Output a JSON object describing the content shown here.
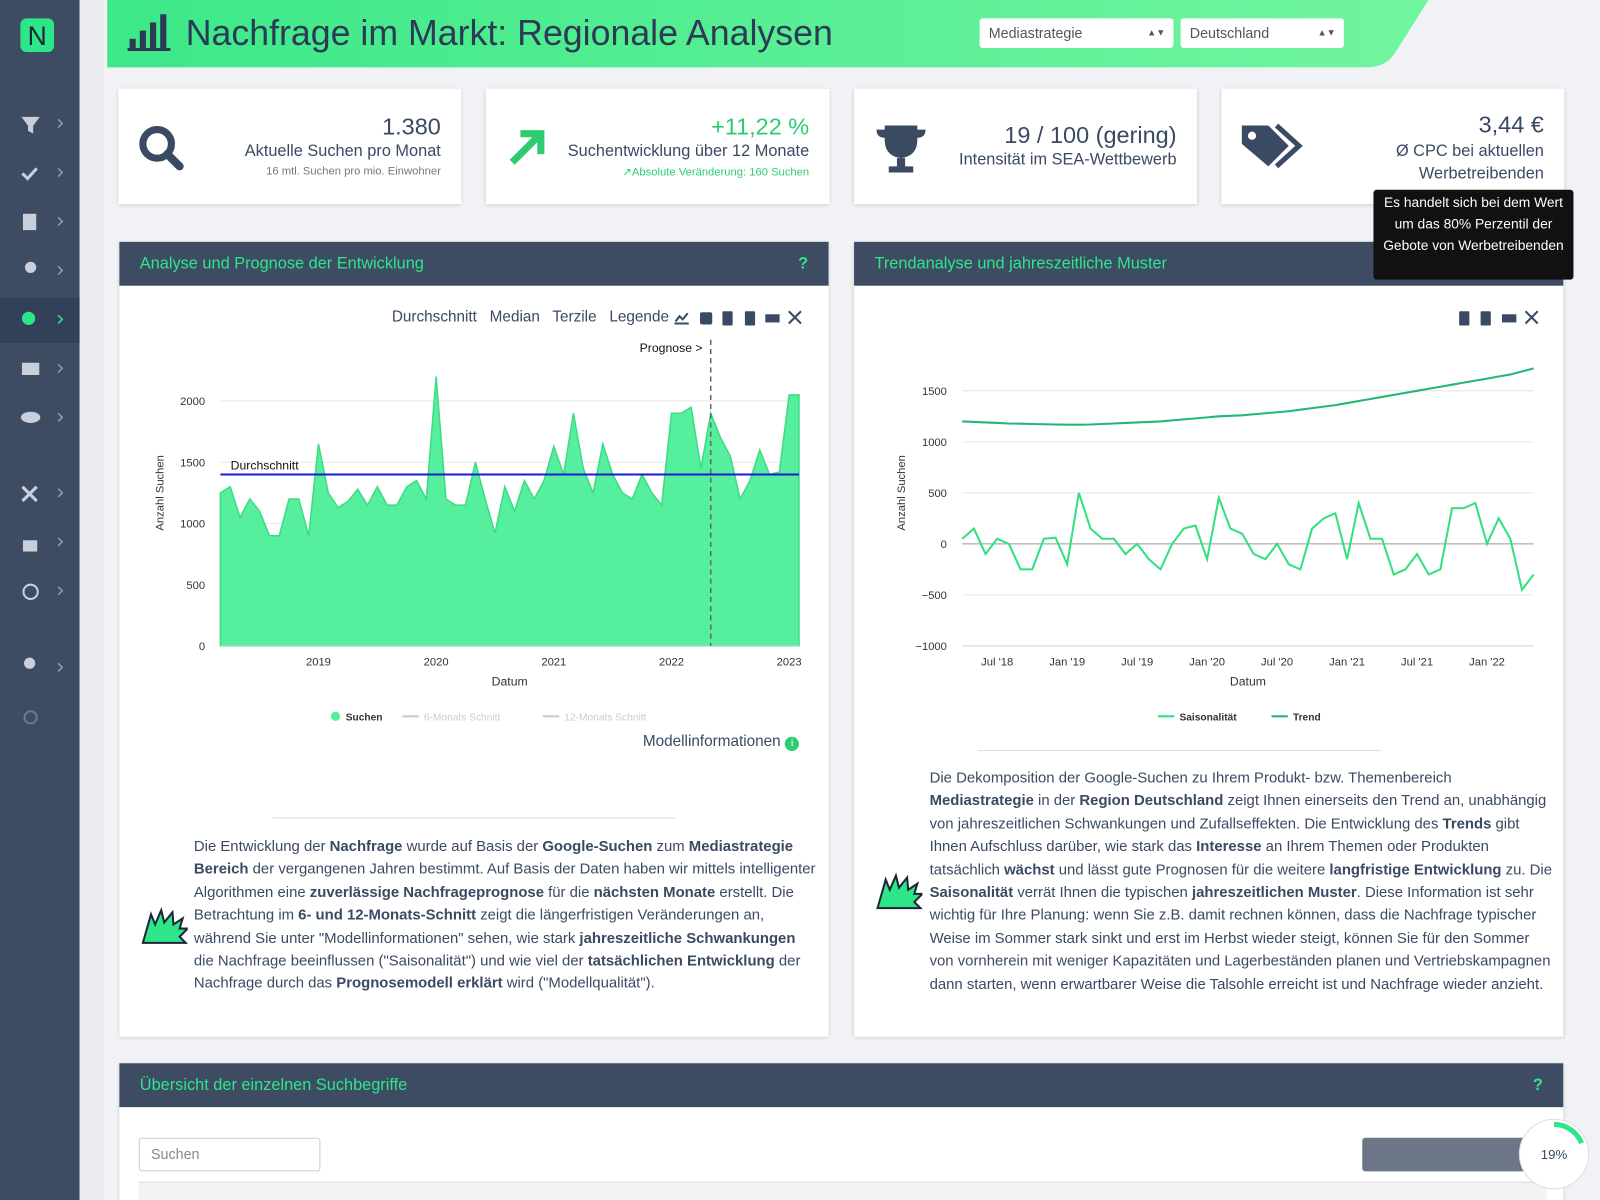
{
  "header": {
    "title": "Nachfrage im Markt: Regionale Analysen",
    "select_topic": "Mediastrategie",
    "select_region": "Deutschland"
  },
  "kpis": [
    {
      "value": "1.380",
      "label": "Aktuelle Suchen pro Monat",
      "note": "16 mtl. Suchen pro mio. Einwohner"
    },
    {
      "value": "+11,22 %",
      "label": "Suchentwicklung über 12 Monate",
      "note": "Absolute Veränderung: 160 Suchen"
    },
    {
      "value": "19 / 100 (gering)",
      "label": "Intensität im SEA-Wettbewerb"
    },
    {
      "value": "3,44 €",
      "label": "Ø CPC bei aktuellen Werbetreibenden"
    }
  ],
  "tooltip": "Es handelt sich bei dem Wert um das 80% Perzentil der Gebote von Werbetreibenden",
  "panels": [
    {
      "title": "Analyse und Prognose der Entwicklung",
      "help": "?",
      "toolbar": [
        "Durchschnitt",
        "Median",
        "Terzile",
        "Legende"
      ],
      "link": "Modellinformationen",
      "paragraph": [
        "Die Entwicklung der ",
        {
          "text": "Nachfrage",
          "bold": true
        },
        " wurde auf Basis der ",
        {
          "text": "Google-Suchen",
          "bold": true
        },
        " zum ",
        {
          "text": "Mediastrategie Bereich",
          "bold": true
        },
        " der vergangenen Jahren bestimmt. Auf Basis der Daten haben wir mittels intelligenter Algorithmen eine ",
        {
          "text": "zuverlässige Nachfrageprognose",
          "bold": true
        },
        " für die ",
        {
          "text": "nächsten Monate",
          "bold": true
        },
        " erstellt. Die Betrachtung im ",
        {
          "text": "6- und 12-Monats-Schnitt",
          "bold": true
        },
        " zeigt die längerfristigen Veränderungen an, während Sie unter \"Modellinformationen\" sehen, wie stark ",
        {
          "text": "jahreszeitliche Schwankungen",
          "bold": true
        },
        " die Nachfrage beeinflussen (\"Saisonalität\") und wie viel der ",
        {
          "text": "tatsächlichen Entwicklung",
          "bold": true
        },
        " der Nachfrage durch das ",
        {
          "text": "Prognosemodell erklärt",
          "bold": true
        },
        " wird (\"Modellqualität\")."
      ]
    },
    {
      "title": "Trendanalyse und jahreszeitliche Muster",
      "paragraph": [
        "Die Dekomposition der Google-Suchen zu Ihrem Produkt- bzw. Themenbereich ",
        {
          "text": "Mediastrategie",
          "bold": true
        },
        " in der ",
        {
          "text": "Region Deutschland",
          "bold": true
        },
        " zeigt Ihnen einerseits den Trend an, unabhängig von jahreszeitlichen Schwankungen und Zufallseffekten. Die Entwicklung des ",
        {
          "text": "Trends",
          "bold": true
        },
        " gibt Ihnen Aufschluss darüber, wie stark das ",
        {
          "text": "Interesse",
          "bold": true
        },
        " an Ihrem Themen oder Produkten tatsächlich ",
        {
          "text": "wächst",
          "bold": true
        },
        " und lässt gute Prognosen für die weitere ",
        {
          "text": "langfristige Entwicklung",
          "bold": true
        },
        " zu. Die ",
        {
          "text": "Saisonalität",
          "bold": true
        },
        " verrät Ihnen die typischen ",
        {
          "text": "jahreszeitlichen Muster",
          "bold": true
        },
        ". Diese Information ist sehr wichtig für Ihre Planung: wenn Sie z.B. damit rechnen können, dass die Nachfrage typischer Weise im Sommer stark sinkt und erst im Herbst wieder steigt, können Sie für den Sommer von vornherein mit weniger Kapazitäten und Lagerbeständen planen und Vertriebskampagnen dann starten, wenn erwartbarer Weise die Talsohle erreicht ist und Nachfrage wieder anzieht."
      ]
    },
    {
      "title": "Übersicht der einzelnen Suchbegriffe",
      "help": "?",
      "search_placeholder": "Suchen",
      "progress": {
        "value": 19,
        "label": "19%"
      }
    }
  ],
  "chart_data": [
    {
      "type": "area",
      "xlabel": "Datum",
      "ylabel": "Anzahl Suchen",
      "categories": [
        null,
        null,
        null,
        null,
        null,
        null,
        null,
        null,
        null,
        null,
        "2019",
        null,
        null,
        null,
        null,
        null,
        null,
        null,
        null,
        null,
        null,
        null,
        "2020",
        null,
        null,
        null,
        null,
        null,
        null,
        null,
        null,
        null,
        null,
        null,
        "2021",
        null,
        null,
        null,
        null,
        null,
        null,
        null,
        null,
        null,
        null,
        null,
        "2022",
        null,
        null,
        null,
        null,
        null,
        null,
        null,
        null,
        null,
        null,
        null,
        "2023",
        null
      ],
      "series": [
        {
          "name": "Suchen",
          "color": "#55ef9e",
          "values": [
            1250,
            1300,
            1050,
            1200,
            1100,
            900,
            900,
            1200,
            1200,
            900,
            1650,
            1250,
            1130,
            1180,
            1280,
            1150,
            1300,
            1150,
            1150,
            1300,
            1350,
            1200,
            2200,
            1200,
            1150,
            1150,
            1500,
            1200,
            920,
            1300,
            1100,
            1350,
            1200,
            1350,
            1630,
            1400,
            1900,
            1450,
            1250,
            1650,
            1400,
            1250,
            1200,
            1400,
            1250,
            1150,
            1900,
            1900,
            1950,
            1450,
            1900,
            1700,
            1550,
            1200,
            1350,
            1600,
            1400,
            1420,
            2050,
            2050
          ]
        }
      ],
      "inactive_series": [
        {
          "name": "6-Monats Schnitt",
          "color": "#cccccc"
        },
        {
          "name": "12-Monats Schnitt",
          "color": "#cccccc"
        }
      ],
      "reference_line": {
        "label": "Durchschnitt",
        "value": 1400,
        "color": "#1a1ad6"
      },
      "forecast": {
        "label": "Prognose >",
        "start_index": 50
      },
      "ylim": [
        0,
        2500
      ],
      "yticks": [
        0,
        500,
        1000,
        1500,
        2000
      ],
      "grid": true
    },
    {
      "type": "line",
      "xlabel": "Datum",
      "ylabel": "Anzahl Suchen",
      "categories": [
        null,
        null,
        null,
        "Jul '18",
        null,
        null,
        null,
        null,
        null,
        "Jan '19",
        null,
        null,
        null,
        null,
        null,
        "Jul '19",
        null,
        null,
        null,
        null,
        null,
        "Jan '20",
        null,
        null,
        null,
        null,
        null,
        "Jul '20",
        null,
        null,
        null,
        null,
        null,
        "Jan '21",
        null,
        null,
        null,
        null,
        null,
        "Jul '21",
        null,
        null,
        null,
        null,
        null,
        "Jan '22",
        null,
        null,
        null,
        null
      ],
      "series": [
        {
          "name": "Saisonalität",
          "color": "#33e07e",
          "values": [
            50,
            150,
            -100,
            50,
            0,
            -250,
            -250,
            50,
            60,
            -200,
            500,
            150,
            50,
            50,
            -100,
            0,
            -150,
            -250,
            0,
            150,
            180,
            -150,
            450,
            150,
            100,
            -100,
            -150,
            0,
            -200,
            -250,
            150,
            250,
            300,
            -150,
            400,
            50,
            50,
            -300,
            -250,
            -100,
            -300,
            -250,
            350,
            350,
            400,
            0,
            250,
            50,
            -450,
            -300
          ]
        },
        {
          "name": "Trend",
          "color": "#22b873",
          "values": [
            1200,
            1195,
            1190,
            1185,
            1180,
            1178,
            1175,
            1172,
            1170,
            1168,
            1168,
            1170,
            1175,
            1180,
            1185,
            1190,
            1195,
            1200,
            1210,
            1220,
            1230,
            1240,
            1250,
            1255,
            1260,
            1270,
            1280,
            1290,
            1300,
            1315,
            1330,
            1345,
            1360,
            1380,
            1400,
            1420,
            1440,
            1460,
            1480,
            1500,
            1520,
            1540,
            1560,
            1580,
            1600,
            1620,
            1640,
            1660,
            1690,
            1720
          ]
        }
      ],
      "ylim": [
        -1000,
        2000
      ],
      "yticks": [
        {
          "value": -1000,
          "label": "−1000"
        },
        {
          "value": -500,
          "label": "−500"
        },
        0,
        500,
        1000,
        1500
      ],
      "grid": true
    }
  ]
}
